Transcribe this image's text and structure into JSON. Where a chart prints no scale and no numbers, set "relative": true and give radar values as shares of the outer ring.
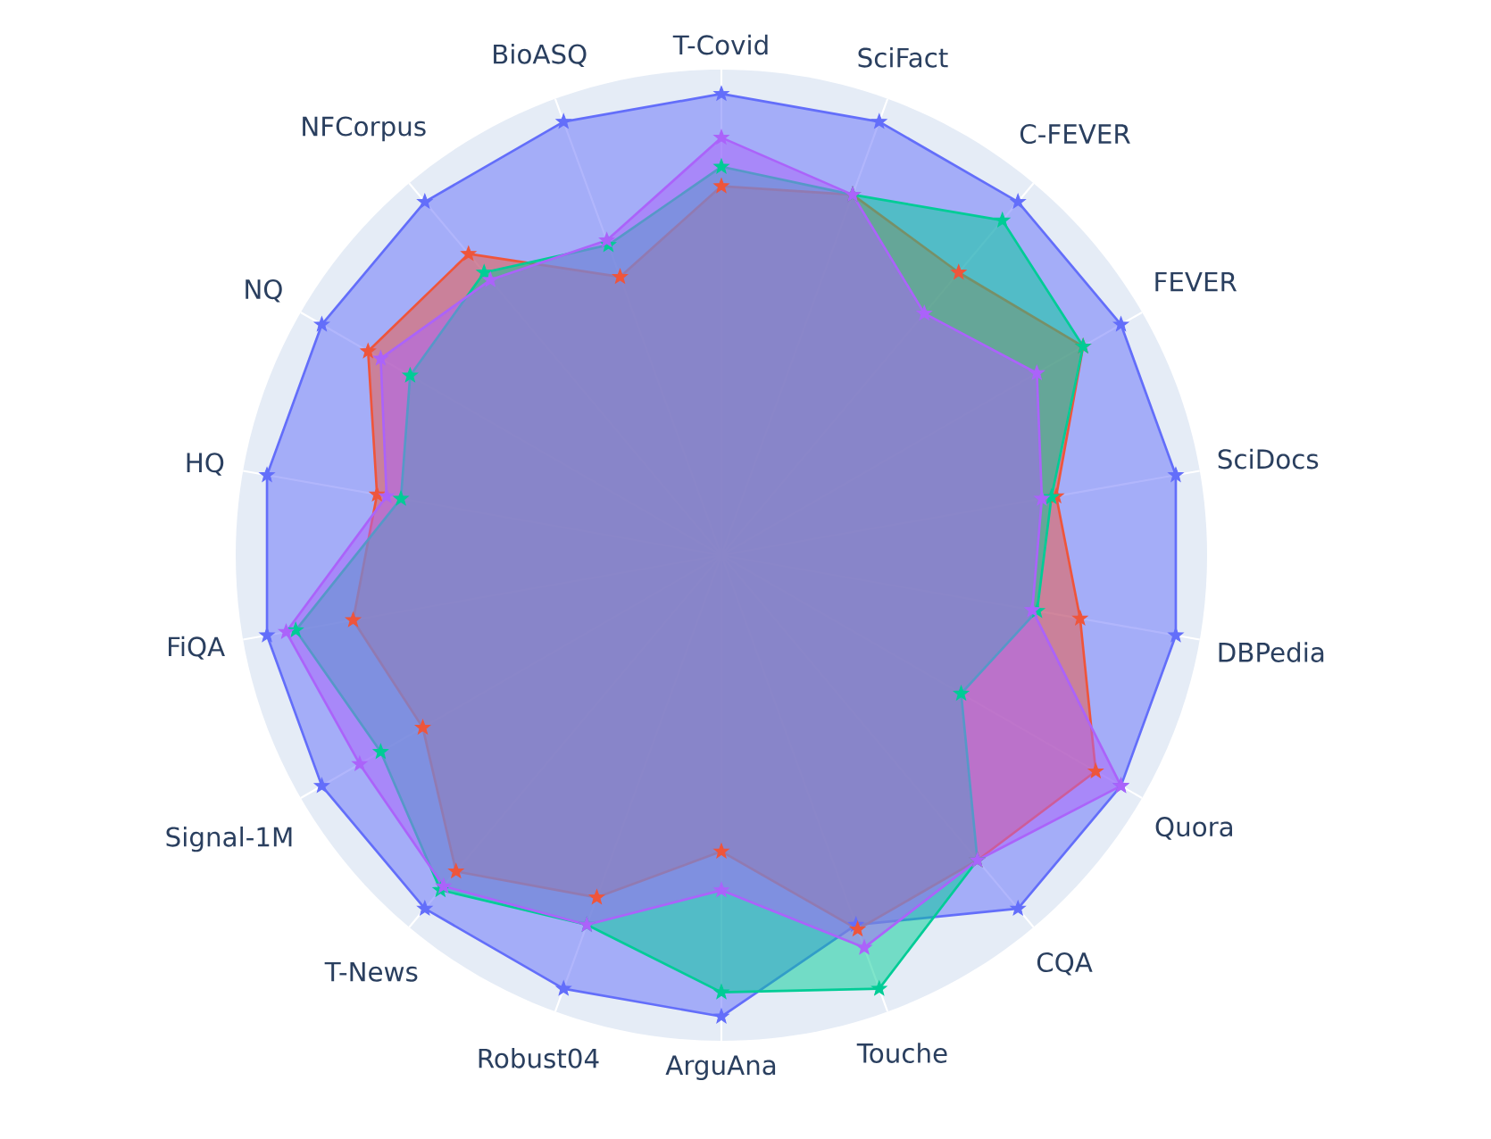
{
  "chart_data": {
    "type": "radar",
    "relative": true,
    "grid": "x",
    "marker": "star",
    "line_style": "solid",
    "categories": [
      "T-Covid",
      "SciFact",
      "C-FEVER",
      "FEVER",
      "SciDocs",
      "DBPedia",
      "Quora",
      "CQA",
      "Touche",
      "ArguAna",
      "Robust04",
      "T-News",
      "Signal-1M",
      "FiQA",
      "HQ",
      "NQ",
      "NFCorpus",
      "BioASQ"
    ],
    "series": [
      {
        "color": "#636efa",
        "values": [
          0.95,
          0.95,
          0.95,
          0.95,
          0.95,
          0.95,
          0.95,
          0.95,
          0.81,
          0.95,
          0.95,
          0.95,
          0.95,
          0.95,
          0.95,
          0.95,
          0.95,
          0.95
        ]
      },
      {
        "color": "#ef553b",
        "values": [
          0.76,
          0.79,
          0.76,
          0.86,
          0.7,
          0.75,
          0.89,
          0.82,
          0.82,
          0.61,
          0.75,
          0.85,
          0.71,
          0.77,
          0.72,
          0.84,
          0.81,
          0.61
        ]
      },
      {
        "color": "#00cc96",
        "values": [
          0.8,
          0.79,
          0.9,
          0.86,
          0.69,
          0.66,
          0.57,
          0.82,
          0.95,
          0.9,
          0.81,
          0.9,
          0.81,
          0.89,
          0.67,
          0.74,
          0.76,
          0.68
        ]
      },
      {
        "color": "#ab63fa",
        "values": [
          0.86,
          0.79,
          0.65,
          0.75,
          0.67,
          0.65,
          0.95,
          0.82,
          0.86,
          0.69,
          0.81,
          0.89,
          0.86,
          0.91,
          0.7,
          0.81,
          0.74,
          0.69
        ]
      }
    ]
  }
}
